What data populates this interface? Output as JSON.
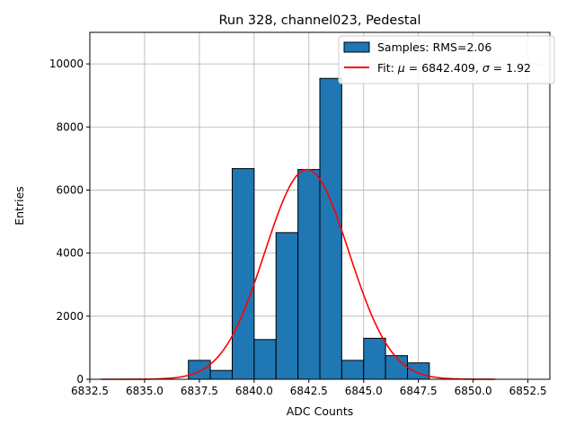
{
  "chart_data": {
    "type": "bar",
    "title": "Run 328, channel023, Pedestal",
    "xlabel": "ADC Counts",
    "ylabel": "Entries",
    "xlim": [
      6832.5,
      6853.5
    ],
    "ylim": [
      0,
      11000
    ],
    "xticks": [
      6832.5,
      6835.0,
      6837.5,
      6840.0,
      6842.5,
      6845.0,
      6847.5,
      6850.0,
      6852.5
    ],
    "xtick_labels": [
      "6832.5",
      "6835.0",
      "6837.5",
      "6840.0",
      "6842.5",
      "6845.0",
      "6847.5",
      "6850.0",
      "6852.5"
    ],
    "yticks": [
      0,
      2000,
      4000,
      6000,
      8000,
      10000
    ],
    "ytick_labels": [
      "0",
      "2000",
      "4000",
      "6000",
      "8000",
      "10000"
    ],
    "grid": true,
    "legend_position": "top-right",
    "histogram": {
      "name": "Samples: RMS=2.06",
      "color": "#1f77b4",
      "edge_color": "#000000",
      "bin_edges": [
        6837.0,
        6838.0,
        6839.0,
        6840.0,
        6841.0,
        6842.0,
        6843.0,
        6844.0,
        6845.0,
        6846.0,
        6847.0,
        6848.0
      ],
      "values": [
        600,
        280,
        6680,
        1260,
        4650,
        6650,
        9540,
        600,
        1300,
        750,
        520
      ]
    },
    "fit": {
      "name_prefix": "Fit: ",
      "mu_symbol": "μ",
      "mu_value": " = 6842.409, ",
      "sigma_symbol": "σ",
      "sigma_value": " = 1.92",
      "color": "#ff0000",
      "mu": 6842.409,
      "sigma": 1.92,
      "amplitude": 6650,
      "x_range": [
        6833.0,
        6851.0
      ]
    }
  }
}
